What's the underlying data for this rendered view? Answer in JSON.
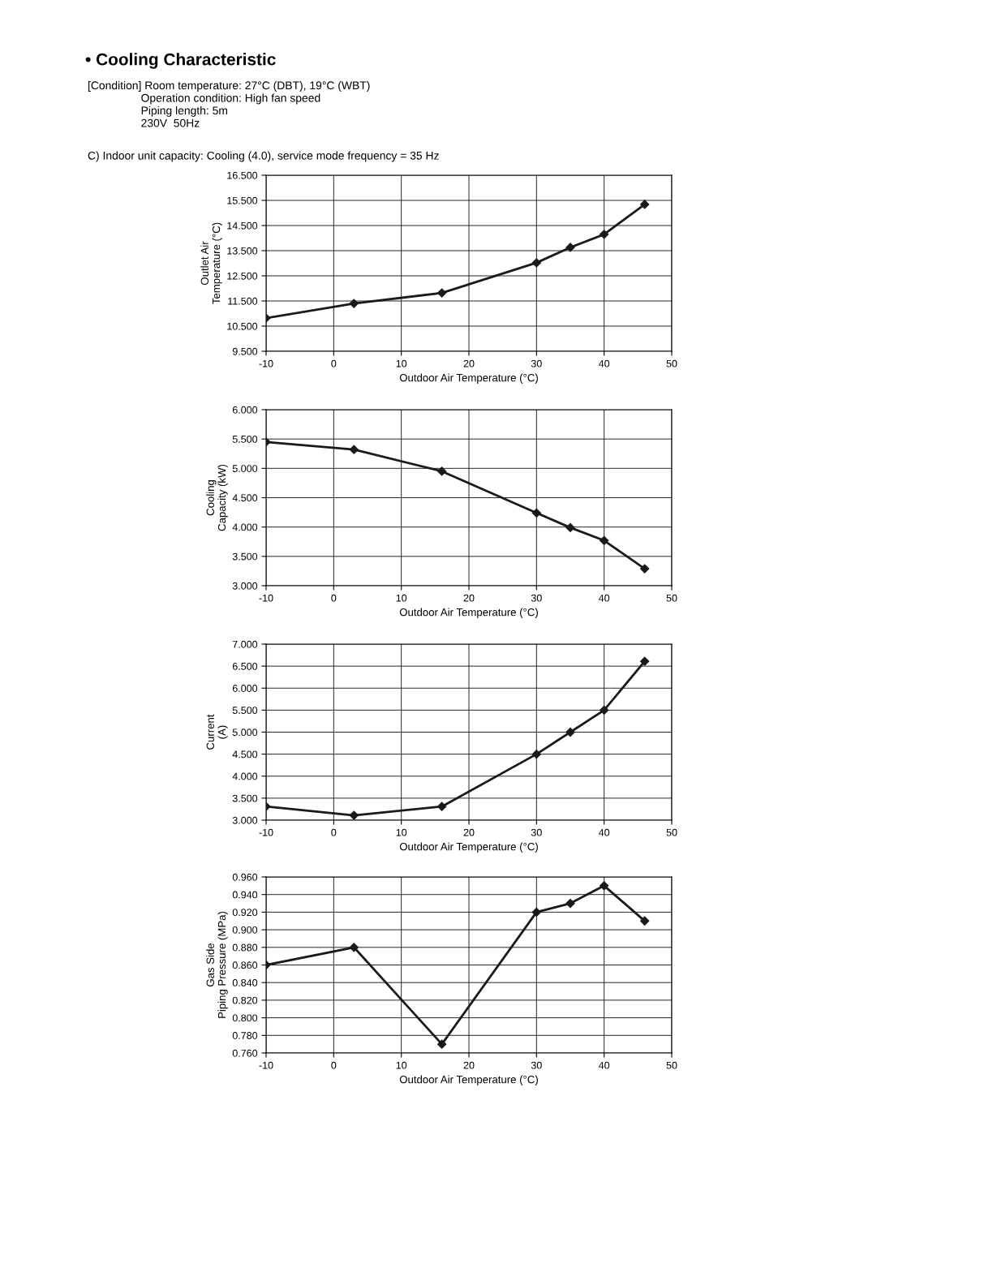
{
  "chart_data": [
    {
      "type": "line",
      "title": "• Cooling Characteristic",
      "subtitle": "[Condition] Room temperature: 27°C (DBT), 19°C (WBT)\n                 Operation condition: High fan speed\n                 Piping length: 5m\n                 230V  50Hz",
      "annotations": [
        "C) Indoor unit capacity: Cooling (4.0), service mode frequency = 35 Hz"
      ],
      "x": [
        -10,
        3,
        16,
        30,
        35,
        40,
        46
      ],
      "values": [
        10.82,
        11.4,
        11.82,
        13.02,
        13.63,
        14.15,
        15.34
      ],
      "color": "#1a1a1a",
      "marker": "diamond",
      "line_style": "solid",
      "grid": true,
      "xlabel": "Outdoor Air Temperature (°C)",
      "ylabel": "Outlet Air\nTemperature (°C)",
      "xlim": [
        -10,
        50
      ],
      "xticks": [
        -10,
        0,
        10,
        20,
        30,
        40,
        50
      ],
      "ylim": [
        9.5,
        16.5
      ],
      "yticks": [
        {
          "value": 9.5,
          "label": "9.500"
        },
        {
          "value": 10.5,
          "label": "10.500"
        },
        {
          "value": 11.5,
          "label": "11.500"
        },
        {
          "value": 12.5,
          "label": "12.500"
        },
        {
          "value": 13.5,
          "label": "13.500"
        },
        {
          "value": 14.5,
          "label": "14.500"
        },
        {
          "value": 15.5,
          "label": "15.500"
        },
        {
          "value": 16.5,
          "label": "16.500"
        }
      ]
    },
    {
      "type": "line",
      "x": [
        -10,
        3,
        16,
        30,
        35,
        40,
        46
      ],
      "values": [
        5.45,
        5.32,
        4.95,
        4.24,
        3.99,
        3.77,
        3.29
      ],
      "color": "#1a1a1a",
      "marker": "diamond",
      "line_style": "solid",
      "grid": true,
      "xlabel": "Outdoor Air Temperature (°C)",
      "ylabel": "Cooling\nCapacity (kW)",
      "xlim": [
        -10,
        50
      ],
      "xticks": [
        -10,
        0,
        10,
        20,
        30,
        40,
        50
      ],
      "ylim": [
        3.0,
        6.0
      ],
      "yticks": [
        {
          "value": 3.0,
          "label": "3.000"
        },
        {
          "value": 3.5,
          "label": "3.500"
        },
        {
          "value": 4.0,
          "label": "4.000"
        },
        {
          "value": 4.5,
          "label": "4.500"
        },
        {
          "value": 5.0,
          "label": "5.000"
        },
        {
          "value": 5.5,
          "label": "5.500"
        },
        {
          "value": 6.0,
          "label": "6.000"
        }
      ]
    },
    {
      "type": "line",
      "x": [
        -10,
        3,
        16,
        30,
        35,
        40,
        46
      ],
      "values": [
        3.31,
        3.11,
        3.31,
        4.5,
        5.0,
        5.5,
        6.61
      ],
      "color": "#1a1a1a",
      "marker": "diamond",
      "line_style": "solid",
      "grid": true,
      "xlabel": "Outdoor Air Temperature (°C)",
      "ylabel": "Current\n(A)",
      "xlim": [
        -10,
        50
      ],
      "xticks": [
        -10,
        0,
        10,
        20,
        30,
        40,
        50
      ],
      "ylim": [
        3.0,
        7.0
      ],
      "yticks": [
        {
          "value": 3.0,
          "label": "3.000"
        },
        {
          "value": 3.5,
          "label": "3.500"
        },
        {
          "value": 4.0,
          "label": "4.000"
        },
        {
          "value": 4.5,
          "label": "4.500"
        },
        {
          "value": 5.0,
          "label": "5.000"
        },
        {
          "value": 5.5,
          "label": "5.500"
        },
        {
          "value": 6.0,
          "label": "6.000"
        },
        {
          "value": 6.5,
          "label": "6.500"
        },
        {
          "value": 7.0,
          "label": "7.000"
        }
      ]
    },
    {
      "type": "line",
      "x": [
        -10,
        3,
        16,
        30,
        35,
        40,
        46
      ],
      "values": [
        0.86,
        0.88,
        0.77,
        0.92,
        0.93,
        0.95,
        0.91
      ],
      "color": "#1a1a1a",
      "marker": "diamond",
      "line_style": "solid",
      "grid": true,
      "xlabel": "Outdoor Air Temperature (°C)",
      "ylabel": "Gas Side\nPiping Pressure (MPa)",
      "xlim": [
        -10,
        50
      ],
      "xticks": [
        -10,
        0,
        10,
        20,
        30,
        40,
        50
      ],
      "ylim": [
        0.76,
        0.96
      ],
      "yticks": [
        {
          "value": 0.76,
          "label": "0.760"
        },
        {
          "value": 0.78,
          "label": "0.780"
        },
        {
          "value": 0.8,
          "label": "0.800"
        },
        {
          "value": 0.82,
          "label": "0.820"
        },
        {
          "value": 0.84,
          "label": "0.840"
        },
        {
          "value": 0.86,
          "label": "0.860"
        },
        {
          "value": 0.88,
          "label": "0.880"
        },
        {
          "value": 0.9,
          "label": "0.900"
        },
        {
          "value": 0.92,
          "label": "0.920"
        },
        {
          "value": 0.94,
          "label": "0.940"
        },
        {
          "value": 0.96,
          "label": "0.960"
        }
      ]
    }
  ]
}
